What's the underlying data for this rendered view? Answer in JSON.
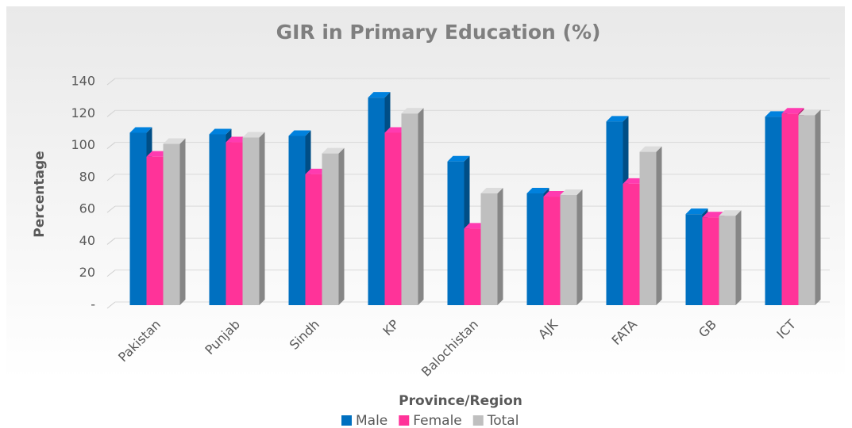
{
  "chart_data": {
    "type": "bar",
    "title": "GIR in Primary Education (%)",
    "x_label": "Province/Region",
    "y_label": "Percentage",
    "categories": [
      "Pakistan",
      "Punjab",
      "Sindh",
      "KP",
      "Balochistan",
      "AJK",
      "FATA",
      "GB",
      "ICT"
    ],
    "series": [
      {
        "name": "Male",
        "color": "#0070c0",
        "values": [
          108,
          107,
          106,
          130,
          90,
          70,
          115,
          57,
          118
        ]
      },
      {
        "name": "Female",
        "color": "#ff3399",
        "values": [
          93,
          102,
          82,
          108,
          48,
          68,
          76,
          55,
          120
        ]
      },
      {
        "name": "Total",
        "color": "#bfbfbf",
        "values": [
          101,
          105,
          95,
          120,
          70,
          69,
          96,
          56,
          119
        ]
      }
    ],
    "ylim": [
      0,
      140
    ],
    "yticks": [
      {
        "value": 0,
        "label": "-"
      },
      20,
      40,
      60,
      80,
      100,
      120,
      140
    ],
    "grid": true,
    "legend": "bottom"
  }
}
